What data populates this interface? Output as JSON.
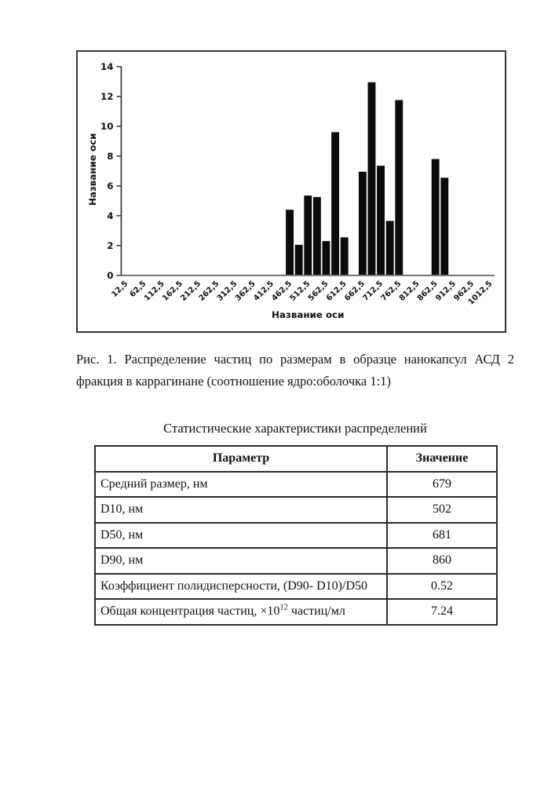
{
  "figure": {
    "caption_line1": "Рис. 1. Распределение частиц по размерам в образце нанокапсул АСД 2",
    "caption_line2": "фракция в каррагинане (соотношение ядро:оболочка 1:1)"
  },
  "chart_data": {
    "type": "bar",
    "title": "",
    "xlabel": "Название оси",
    "ylabel": "Название оси",
    "ylim": [
      0,
      14
    ],
    "ytick_step": 2,
    "ytick_labels": [
      "0",
      "2",
      "4",
      "6",
      "8",
      "10",
      "12",
      "14"
    ],
    "grid": false,
    "legend": null,
    "bar_color": "#0b0b0b",
    "bin_start": 12.5,
    "bin_step": 25,
    "n_bins": 41,
    "x_tick_every": 2,
    "x_tick_labels": [
      "12,5",
      "62,5",
      "112,5",
      "162,5",
      "212,5",
      "262,5",
      "312,5",
      "362,5",
      "412,5",
      "462,5",
      "512,5",
      "562,5",
      "612,5",
      "662,5",
      "712,5",
      "762,5",
      "812,5",
      "862,5",
      "912,5",
      "962,5",
      "1012,5"
    ],
    "bars": [
      {
        "x": 462.5,
        "value": 4.4
      },
      {
        "x": 487.5,
        "value": 2.05
      },
      {
        "x": 512.5,
        "value": 5.35
      },
      {
        "x": 537.5,
        "value": 5.25
      },
      {
        "x": 562.5,
        "value": 2.3
      },
      {
        "x": 587.5,
        "value": 9.6
      },
      {
        "x": 612.5,
        "value": 2.55
      },
      {
        "x": 662.5,
        "value": 6.95
      },
      {
        "x": 687.5,
        "value": 12.95
      },
      {
        "x": 712.5,
        "value": 7.35
      },
      {
        "x": 737.5,
        "value": 3.65
      },
      {
        "x": 762.5,
        "value": 11.75
      },
      {
        "x": 862.5,
        "value": 7.8
      },
      {
        "x": 887.5,
        "value": 6.55
      }
    ]
  },
  "table_section": {
    "title": "Статистические характеристики распределений",
    "table": {
      "headers": [
        "Параметр",
        "Значение"
      ],
      "rows": [
        [
          "Средний размер, нм",
          "679"
        ],
        [
          "D10, нм",
          "502"
        ],
        [
          "D50, нм",
          "681"
        ],
        [
          "D90, нм",
          "860"
        ],
        [
          "Коэффициент полидисперсности, (D90- D10)/D50",
          "0.52"
        ],
        [
          "Общая концентрация частиц, ×10^{12} частиц/мл",
          "7.24"
        ]
      ]
    }
  }
}
